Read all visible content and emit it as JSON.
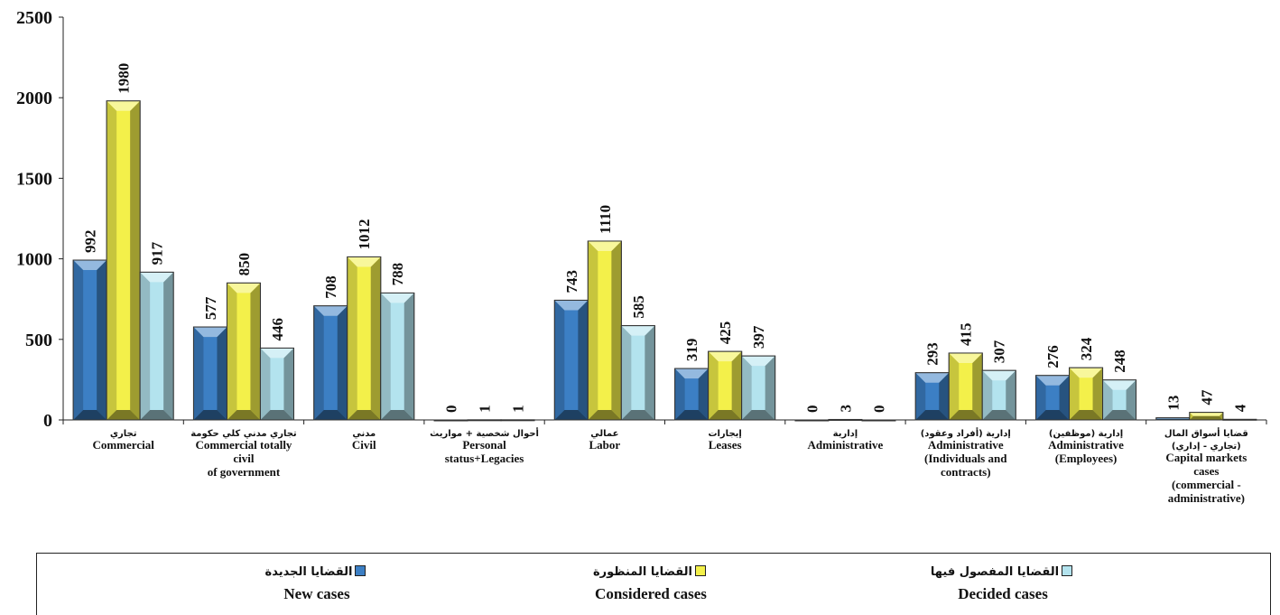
{
  "chart_data": {
    "type": "bar",
    "title": "",
    "xlabel": "",
    "ylabel": "",
    "ylim": [
      0,
      2500
    ],
    "yticks": [
      0,
      500,
      1000,
      1500,
      2000,
      2500
    ],
    "grid": false,
    "legend_position": "bottom",
    "categories": [
      {
        "ar": "تجاري",
        "en": [
          "Commercial"
        ]
      },
      {
        "ar": "تجاري مدني كلي حكومة",
        "en": [
          "Commercial totally",
          "civil",
          "of government"
        ]
      },
      {
        "ar": "مدني",
        "en": [
          "Civil"
        ]
      },
      {
        "ar": "أحوال شخصية + مواريث",
        "en": [
          "Personal",
          "status+Legacies"
        ]
      },
      {
        "ar": "عمالي",
        "en": [
          "Labor"
        ]
      },
      {
        "ar": "إيجارات",
        "en": [
          "Leases"
        ]
      },
      {
        "ar": "إدارية",
        "en": [
          "Administrative"
        ]
      },
      {
        "ar": "إدارية (أفراد وعقود)",
        "en": [
          "Administrative",
          "(Individuals and",
          "contracts)"
        ]
      },
      {
        "ar": "إدارية (موظفين)",
        "en": [
          "Administrative",
          "(Employees)"
        ]
      },
      {
        "ar": "قضايا أسواق المال",
        "ar2": "(تجاري - إداري)",
        "en": [
          "Capital markets",
          "cases",
          "(commercial -",
          "administrative)"
        ]
      }
    ],
    "series": [
      {
        "name_ar": "القضايا الجديدة",
        "name_en": "New cases",
        "color": "#3c7fc4",
        "values": [
          992,
          577,
          708,
          0,
          743,
          319,
          0,
          293,
          276,
          13
        ]
      },
      {
        "name_ar": "القضايا المنظورة",
        "name_en": "Considered cases",
        "color": "#f3f04a",
        "values": [
          1980,
          850,
          1012,
          1,
          1110,
          425,
          3,
          415,
          324,
          47
        ]
      },
      {
        "name_ar": "القضايا المفصول فيها",
        "name_en": "Decided cases",
        "color": "#b3e3ee",
        "values": [
          917,
          446,
          788,
          1,
          585,
          397,
          0,
          307,
          248,
          4
        ]
      }
    ]
  }
}
